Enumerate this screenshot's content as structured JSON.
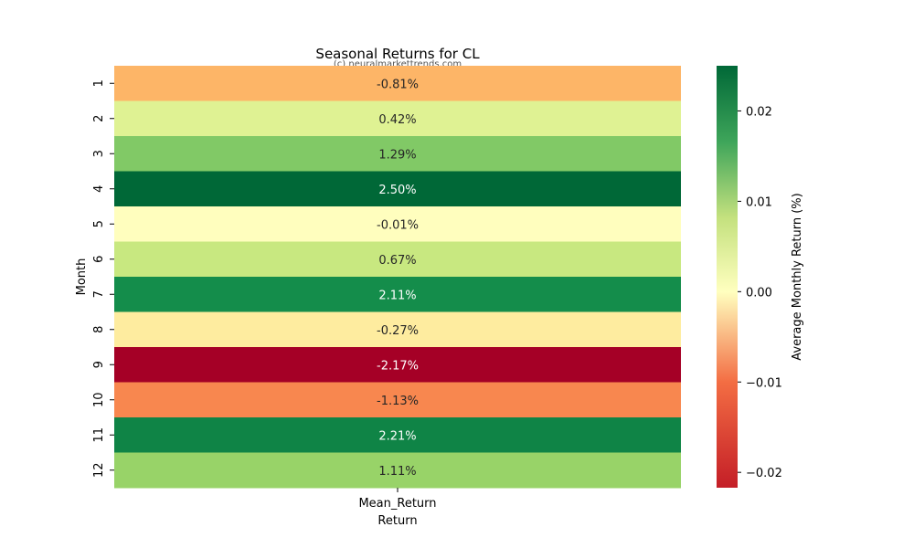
{
  "chart_data": {
    "type": "heatmap",
    "title": "Seasonal Returns for CL",
    "watermark": "(c) neuralmarkettrends.com",
    "xlabel": "Return",
    "ylabel": "Month",
    "columns": [
      "Mean_Return"
    ],
    "rows": [
      "1",
      "2",
      "3",
      "4",
      "5",
      "6",
      "7",
      "8",
      "9",
      "10",
      "11",
      "12"
    ],
    "values": [
      -0.0081,
      0.0042,
      0.0129,
      0.025,
      -0.0001,
      0.0067,
      0.0211,
      -0.0027,
      -0.0217,
      -0.0113,
      0.0221,
      0.0111
    ],
    "annotations": [
      "-0.81%",
      "0.42%",
      "1.29%",
      "2.50%",
      "-0.01%",
      "0.67%",
      "2.11%",
      "-0.27%",
      "-2.17%",
      "-1.13%",
      "2.21%",
      "1.11%"
    ],
    "colormap": "RdYlGn",
    "vmin": -0.0217,
    "vmax": 0.025,
    "colorbar": {
      "label": "Average Monthly Return (%)",
      "ticks": [
        -0.02,
        -0.01,
        0.0,
        0.01,
        0.02
      ],
      "tick_labels": [
        "−0.02",
        "−0.01",
        "0.00",
        "0.01",
        "0.02"
      ]
    }
  }
}
